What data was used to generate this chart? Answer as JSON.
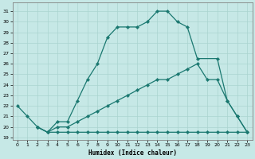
{
  "xlabel": "Humidex (Indice chaleur)",
  "background_color": "#c6e8e6",
  "grid_color": "#aad4d0",
  "line_color": "#1a7870",
  "xlim": [
    -0.5,
    23.5
  ],
  "ylim": [
    18.8,
    31.8
  ],
  "xticks": [
    0,
    1,
    2,
    3,
    4,
    5,
    6,
    7,
    8,
    9,
    10,
    11,
    12,
    13,
    14,
    15,
    16,
    17,
    18,
    19,
    20,
    21,
    22,
    23
  ],
  "yticks": [
    19,
    20,
    21,
    22,
    23,
    24,
    25,
    26,
    27,
    28,
    29,
    30,
    31
  ],
  "line1_x": [
    0,
    1,
    2,
    3,
    4,
    5,
    6,
    7,
    8,
    9,
    10,
    11,
    12,
    13,
    14,
    15,
    16,
    17,
    18,
    20,
    21,
    22,
    23
  ],
  "line1_y": [
    22,
    21,
    20,
    19.5,
    20.5,
    20.5,
    22.5,
    24.5,
    26,
    28.5,
    29.5,
    29.5,
    29.5,
    30,
    31,
    31,
    30,
    29.5,
    26.5,
    26.5,
    22.5,
    21.0,
    19.5
  ],
  "line2_x": [
    2,
    3,
    4,
    5,
    6,
    7,
    8,
    9,
    10,
    11,
    12,
    13,
    14,
    15,
    16,
    17,
    18,
    19,
    20,
    21,
    22,
    23
  ],
  "line2_y": [
    20,
    19.5,
    20.0,
    20.0,
    20.5,
    21.0,
    21.5,
    22.0,
    22.5,
    23.0,
    23.5,
    24.0,
    24.5,
    24.5,
    25.0,
    25.5,
    26.0,
    24.5,
    24.5,
    22.5,
    21.0,
    19.5
  ],
  "line3_x": [
    2,
    3,
    4,
    5,
    6,
    7,
    8,
    9,
    10,
    11,
    12,
    13,
    14,
    15,
    16,
    17,
    18,
    19,
    20,
    21,
    22,
    23
  ],
  "line3_y": [
    20,
    19.5,
    19.5,
    19.5,
    19.5,
    19.5,
    19.5,
    19.5,
    19.5,
    19.5,
    19.5,
    19.5,
    19.5,
    19.5,
    19.5,
    19.5,
    19.5,
    19.5,
    19.5,
    19.5,
    19.5,
    19.5
  ]
}
